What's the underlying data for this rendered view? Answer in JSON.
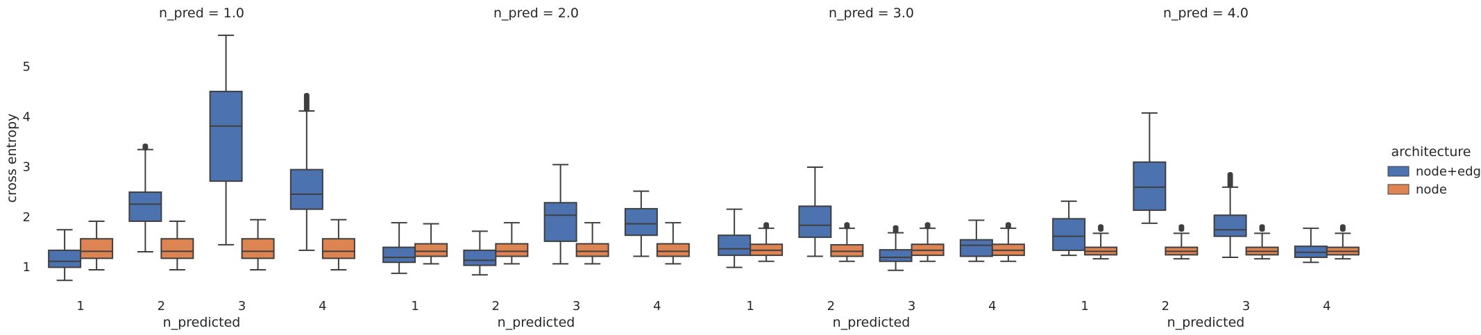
{
  "chart_data": {
    "type": "box",
    "ylabel": "cross entropy",
    "yticks": [
      1,
      2,
      3,
      4,
      5
    ],
    "ylim": [
      0.3,
      5.8
    ],
    "categories": [
      "1",
      "2",
      "3",
      "4"
    ],
    "xlabel": "n_predicted",
    "legend": {
      "title": "architecture",
      "placement": "right",
      "entries": [
        {
          "name": "node+edge",
          "color": "#4c72b0"
        },
        {
          "name": "node",
          "color": "#dd8452"
        }
      ]
    },
    "panels": [
      {
        "title": "n_pred = 1.0",
        "boxes": [
          {
            "category": "1",
            "series": "node+edge",
            "whislo": 0.72,
            "q1": 0.98,
            "med": 1.1,
            "q3": 1.32,
            "whishi": 1.73,
            "fliers_lo": null,
            "fliers_hi": null
          },
          {
            "category": "1",
            "series": "node",
            "whislo": 0.93,
            "q1": 1.16,
            "med": 1.3,
            "q3": 1.55,
            "whishi": 1.9,
            "fliers_lo": null,
            "fliers_hi": null
          },
          {
            "category": "2",
            "series": "node+edge",
            "whislo": 1.29,
            "q1": 1.9,
            "med": 2.24,
            "q3": 2.48,
            "whishi": 3.33,
            "fliers_lo": 3.35,
            "fliers_hi": 3.41
          },
          {
            "category": "2",
            "series": "node",
            "whislo": 0.93,
            "q1": 1.16,
            "med": 1.3,
            "q3": 1.55,
            "whishi": 1.9,
            "fliers_lo": null,
            "fliers_hi": null
          },
          {
            "category": "3",
            "series": "node+edge",
            "whislo": 1.43,
            "q1": 2.7,
            "med": 3.8,
            "q3": 4.49,
            "whishi": 5.61,
            "fliers_lo": null,
            "fliers_hi": null
          },
          {
            "category": "3",
            "series": "node",
            "whislo": 0.93,
            "q1": 1.16,
            "med": 1.3,
            "q3": 1.55,
            "whishi": 1.93,
            "fliers_lo": null,
            "fliers_hi": null
          },
          {
            "category": "4",
            "series": "node+edge",
            "whislo": 1.32,
            "q1": 2.14,
            "med": 2.44,
            "q3": 2.93,
            "whishi": 4.1,
            "fliers_lo": 4.12,
            "fliers_hi": 4.42
          },
          {
            "category": "4",
            "series": "node",
            "whislo": 0.93,
            "q1": 1.16,
            "med": 1.3,
            "q3": 1.55,
            "whishi": 1.93,
            "fliers_lo": null,
            "fliers_hi": null
          }
        ]
      },
      {
        "title": "n_pred = 2.0",
        "boxes": [
          {
            "category": "1",
            "series": "node+edge",
            "whislo": 0.86,
            "q1": 1.08,
            "med": 1.18,
            "q3": 1.38,
            "whishi": 1.87,
            "fliers_lo": null,
            "fliers_hi": null
          },
          {
            "category": "1",
            "series": "node",
            "whislo": 1.05,
            "q1": 1.2,
            "med": 1.3,
            "q3": 1.45,
            "whishi": 1.85,
            "fliers_lo": null,
            "fliers_hi": null
          },
          {
            "category": "2",
            "series": "node+edge",
            "whislo": 0.83,
            "q1": 1.02,
            "med": 1.12,
            "q3": 1.32,
            "whishi": 1.7,
            "fliers_lo": null,
            "fliers_hi": null
          },
          {
            "category": "2",
            "series": "node",
            "whislo": 1.05,
            "q1": 1.2,
            "med": 1.3,
            "q3": 1.45,
            "whishi": 1.87,
            "fliers_lo": null,
            "fliers_hi": null
          },
          {
            "category": "3",
            "series": "node+edge",
            "whislo": 1.05,
            "q1": 1.5,
            "med": 2.02,
            "q3": 2.27,
            "whishi": 3.03,
            "fliers_lo": null,
            "fliers_hi": null
          },
          {
            "category": "3",
            "series": "node",
            "whislo": 1.05,
            "q1": 1.2,
            "med": 1.3,
            "q3": 1.45,
            "whishi": 1.87,
            "fliers_lo": null,
            "fliers_hi": null
          },
          {
            "category": "4",
            "series": "node+edge",
            "whislo": 1.2,
            "q1": 1.62,
            "med": 1.85,
            "q3": 2.15,
            "whishi": 2.5,
            "fliers_lo": null,
            "fliers_hi": null
          },
          {
            "category": "4",
            "series": "node",
            "whislo": 1.05,
            "q1": 1.2,
            "med": 1.3,
            "q3": 1.45,
            "whishi": 1.87,
            "fliers_lo": null,
            "fliers_hi": null
          }
        ]
      },
      {
        "title": "n_pred = 3.0",
        "boxes": [
          {
            "category": "1",
            "series": "node+edge",
            "whislo": 0.98,
            "q1": 1.22,
            "med": 1.35,
            "q3": 1.62,
            "whishi": 2.14,
            "fliers_lo": null,
            "fliers_hi": null
          },
          {
            "category": "1",
            "series": "node",
            "whislo": 1.1,
            "q1": 1.22,
            "med": 1.32,
            "q3": 1.44,
            "whishi": 1.76,
            "fliers_lo": 1.78,
            "fliers_hi": 1.84
          },
          {
            "category": "2",
            "series": "node+edge",
            "whislo": 1.2,
            "q1": 1.58,
            "med": 1.82,
            "q3": 2.2,
            "whishi": 2.98,
            "fliers_lo": null,
            "fliers_hi": null
          },
          {
            "category": "2",
            "series": "node",
            "whislo": 1.1,
            "q1": 1.2,
            "med": 1.3,
            "q3": 1.43,
            "whishi": 1.76,
            "fliers_lo": 1.78,
            "fliers_hi": 1.84
          },
          {
            "category": "3",
            "series": "node+edge",
            "whislo": 0.92,
            "q1": 1.1,
            "med": 1.18,
            "q3": 1.33,
            "whishi": 1.67,
            "fliers_lo": 1.7,
            "fliers_hi": 1.78
          },
          {
            "category": "3",
            "series": "node",
            "whislo": 1.1,
            "q1": 1.22,
            "med": 1.32,
            "q3": 1.44,
            "whishi": 1.76,
            "fliers_lo": 1.78,
            "fliers_hi": 1.84
          },
          {
            "category": "4",
            "series": "node+edge",
            "whislo": 1.1,
            "q1": 1.2,
            "med": 1.42,
            "q3": 1.53,
            "whishi": 1.92,
            "fliers_lo": null,
            "fliers_hi": null
          },
          {
            "category": "4",
            "series": "node",
            "whislo": 1.1,
            "q1": 1.22,
            "med": 1.32,
            "q3": 1.44,
            "whishi": 1.76,
            "fliers_lo": 1.78,
            "fliers_hi": 1.84
          }
        ]
      },
      {
        "title": "n_pred = 4.0",
        "boxes": [
          {
            "category": "1",
            "series": "node+edge",
            "whislo": 1.22,
            "q1": 1.32,
            "med": 1.6,
            "q3": 1.95,
            "whishi": 2.3,
            "fliers_lo": null,
            "fliers_hi": null
          },
          {
            "category": "1",
            "series": "node",
            "whislo": 1.15,
            "q1": 1.23,
            "med": 1.3,
            "q3": 1.38,
            "whishi": 1.66,
            "fliers_lo": 1.73,
            "fliers_hi": 1.8
          },
          {
            "category": "2",
            "series": "node+edge",
            "whislo": 1.86,
            "q1": 2.12,
            "med": 2.58,
            "q3": 3.08,
            "whishi": 4.06,
            "fliers_lo": null,
            "fliers_hi": null
          },
          {
            "category": "2",
            "series": "node",
            "whislo": 1.15,
            "q1": 1.23,
            "med": 1.3,
            "q3": 1.38,
            "whishi": 1.66,
            "fliers_lo": 1.73,
            "fliers_hi": 1.8
          },
          {
            "category": "3",
            "series": "node+edge",
            "whislo": 1.18,
            "q1": 1.6,
            "med": 1.73,
            "q3": 2.02,
            "whishi": 2.58,
            "fliers_lo": 2.6,
            "fliers_hi": 2.84
          },
          {
            "category": "3",
            "series": "node",
            "whislo": 1.15,
            "q1": 1.23,
            "med": 1.3,
            "q3": 1.38,
            "whishi": 1.66,
            "fliers_lo": 1.73,
            "fliers_hi": 1.8
          },
          {
            "category": "4",
            "series": "node+edge",
            "whislo": 1.08,
            "q1": 1.18,
            "med": 1.28,
            "q3": 1.4,
            "whishi": 1.76,
            "fliers_lo": null,
            "fliers_hi": null
          },
          {
            "category": "4",
            "series": "node",
            "whislo": 1.15,
            "q1": 1.23,
            "med": 1.3,
            "q3": 1.38,
            "whishi": 1.66,
            "fliers_lo": 1.73,
            "fliers_hi": 1.8
          }
        ]
      }
    ]
  }
}
